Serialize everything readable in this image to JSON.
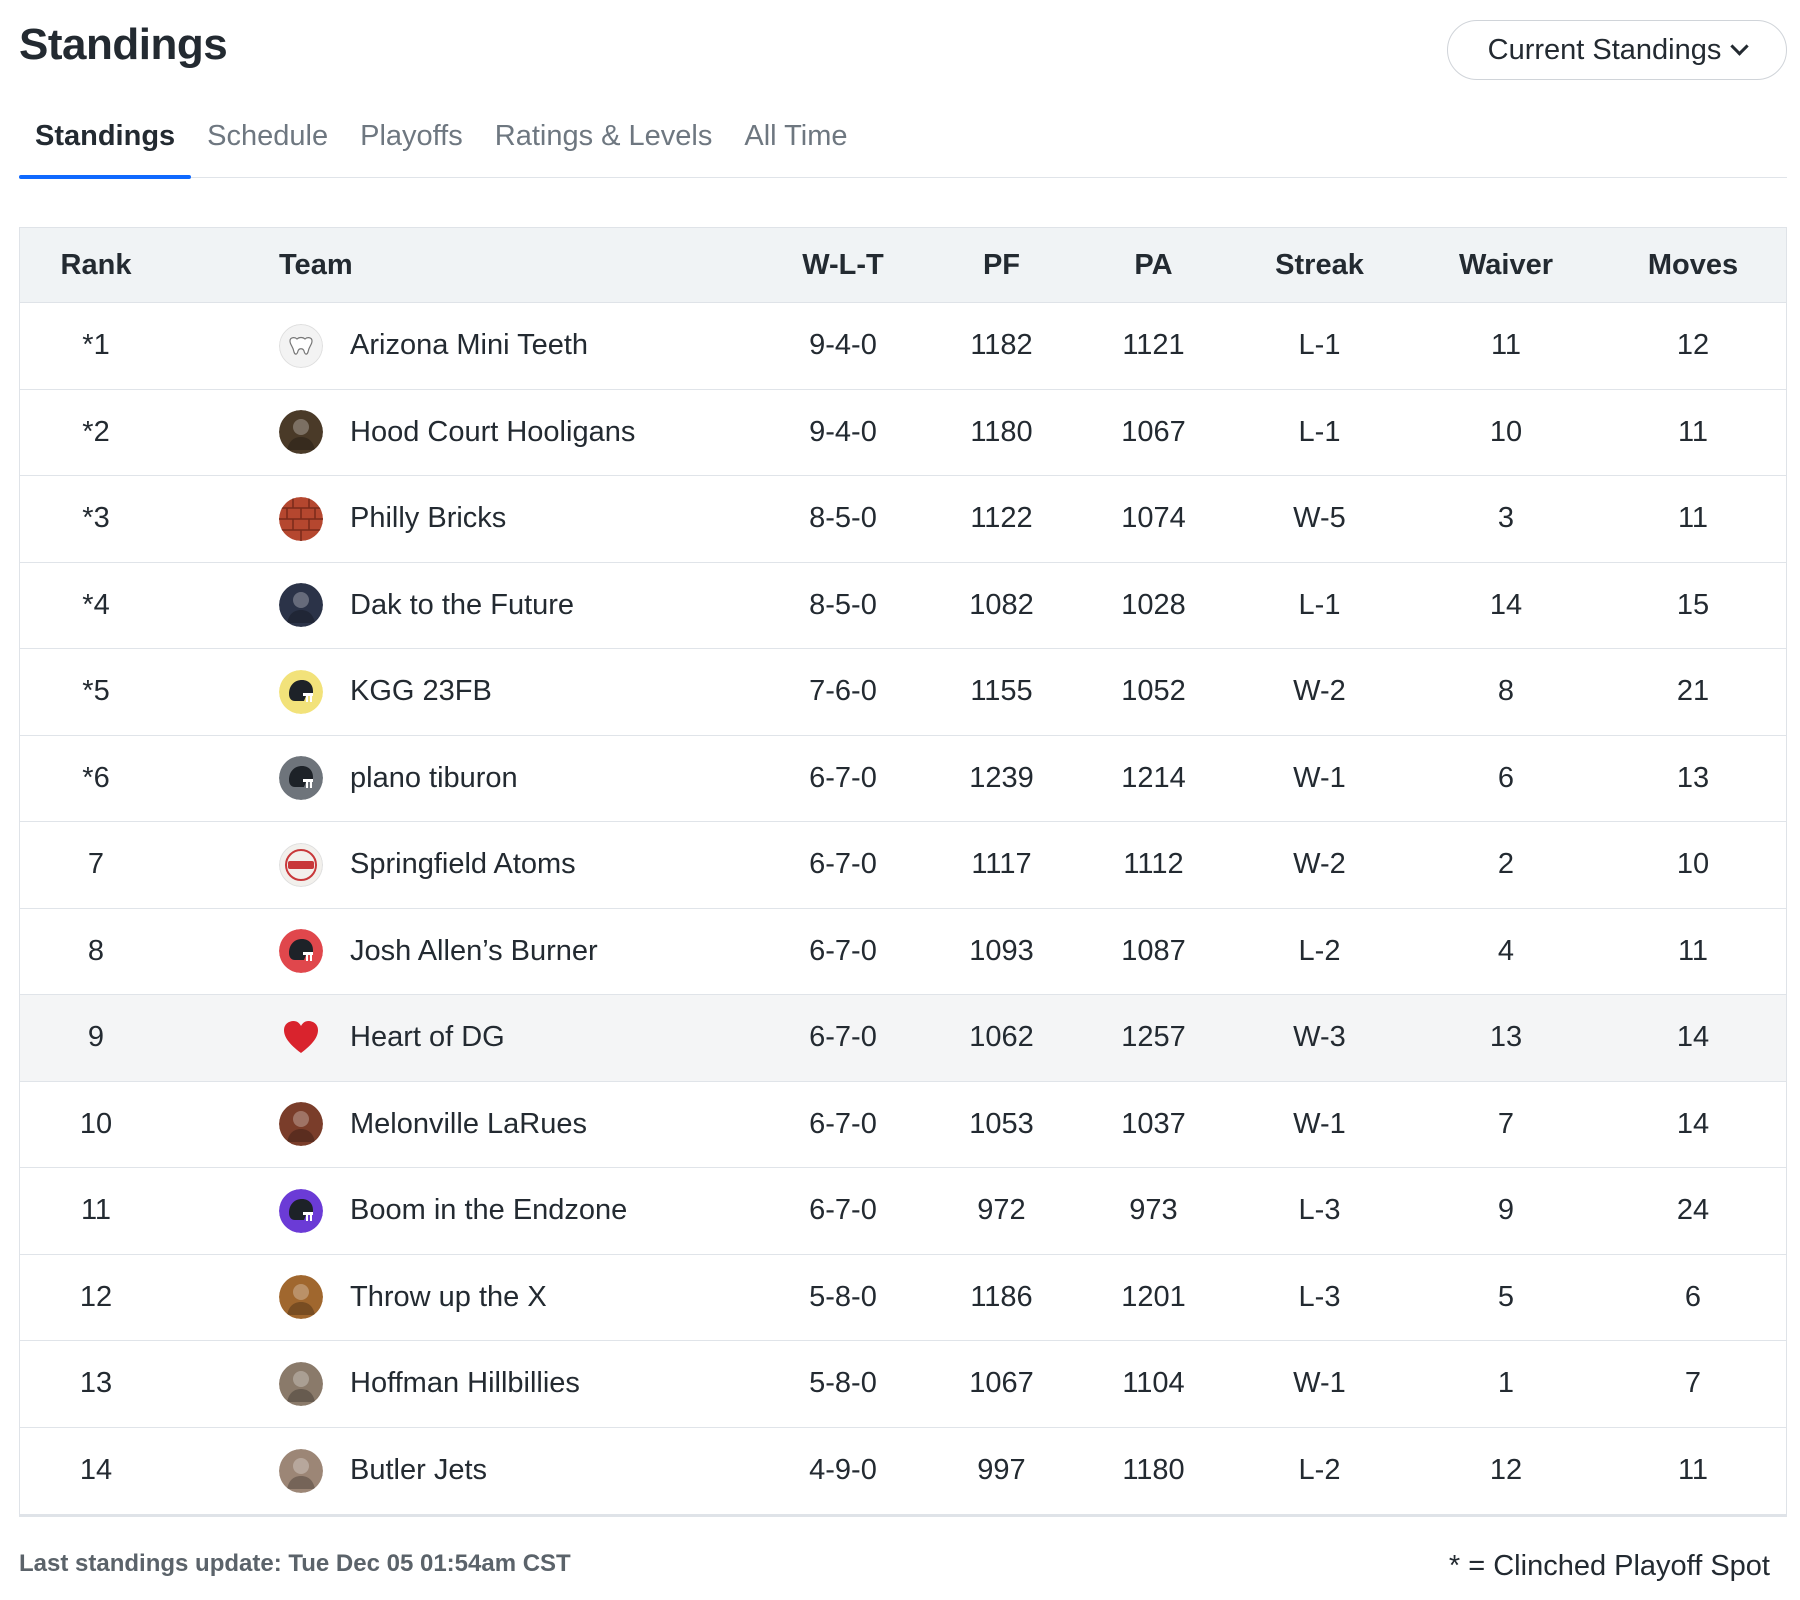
{
  "header": {
    "title": "Standings",
    "view_select": "Current Standings"
  },
  "tabs": [
    {
      "label": "Standings",
      "active": true
    },
    {
      "label": "Schedule",
      "active": false
    },
    {
      "label": "Playoffs",
      "active": false
    },
    {
      "label": "Ratings & Levels",
      "active": false
    },
    {
      "label": "All Time",
      "active": false
    }
  ],
  "table": {
    "columns": [
      "Rank",
      "Team",
      "W-L-T",
      "PF",
      "PA",
      "Streak",
      "Waiver",
      "Moves"
    ],
    "rows": [
      {
        "rank": "*1",
        "team": "Arizona Mini Teeth",
        "wlt": "9-4-0",
        "pf": "1182",
        "pa": "1121",
        "streak": "L-1",
        "waiver": "11",
        "moves": "12",
        "avatar": "teeth-icon",
        "avatar_color": "#f3f3f3"
      },
      {
        "rank": "*2",
        "team": "Hood Court Hooligans",
        "wlt": "9-4-0",
        "pf": "1180",
        "pa": "1067",
        "streak": "L-1",
        "waiver": "10",
        "moves": "11",
        "avatar": "photo-icon",
        "avatar_color": "#4a3a28"
      },
      {
        "rank": "*3",
        "team": "Philly Bricks",
        "wlt": "8-5-0",
        "pf": "1122",
        "pa": "1074",
        "streak": "W-5",
        "waiver": "3",
        "moves": "11",
        "avatar": "brick-icon",
        "avatar_color": "#b5472f"
      },
      {
        "rank": "*4",
        "team": "Dak to the Future",
        "wlt": "8-5-0",
        "pf": "1082",
        "pa": "1028",
        "streak": "L-1",
        "waiver": "14",
        "moves": "15",
        "avatar": "photo-icon",
        "avatar_color": "#2b3348"
      },
      {
        "rank": "*5",
        "team": "KGG 23FB",
        "wlt": "7-6-0",
        "pf": "1155",
        "pa": "1052",
        "streak": "W-2",
        "waiver": "8",
        "moves": "21",
        "avatar": "helmet-icon",
        "avatar_color": "#f2e27a"
      },
      {
        "rank": "*6",
        "team": "plano tiburon",
        "wlt": "6-7-0",
        "pf": "1239",
        "pa": "1214",
        "streak": "W-1",
        "waiver": "6",
        "moves": "13",
        "avatar": "helmet-icon",
        "avatar_color": "#6e747b"
      },
      {
        "rank": "7",
        "team": "Springfield Atoms",
        "wlt": "6-7-0",
        "pf": "1117",
        "pa": "1112",
        "streak": "W-2",
        "waiver": "2",
        "moves": "10",
        "avatar": "atoms-logo-icon",
        "avatar_color": "#f2f0ec"
      },
      {
        "rank": "8",
        "team": "Josh Allen’s Burner",
        "wlt": "6-7-0",
        "pf": "1093",
        "pa": "1087",
        "streak": "L-2",
        "waiver": "4",
        "moves": "11",
        "avatar": "helmet-icon",
        "avatar_color": "#e0474c"
      },
      {
        "rank": "9",
        "team": "Heart of DG",
        "wlt": "6-7-0",
        "pf": "1062",
        "pa": "1257",
        "streak": "W-3",
        "waiver": "13",
        "moves": "14",
        "avatar": "heart-icon",
        "avatar_color": "#d9232d",
        "highlight": true
      },
      {
        "rank": "10",
        "team": "Melonville LaRues",
        "wlt": "6-7-0",
        "pf": "1053",
        "pa": "1037",
        "streak": "W-1",
        "waiver": "7",
        "moves": "14",
        "avatar": "photo-icon",
        "avatar_color": "#7a3d2a"
      },
      {
        "rank": "11",
        "team": "Boom in the Endzone",
        "wlt": "6-7-0",
        "pf": "972",
        "pa": "973",
        "streak": "L-3",
        "waiver": "9",
        "moves": "24",
        "avatar": "helmet-icon",
        "avatar_color": "#6b3bd6"
      },
      {
        "rank": "12",
        "team": "Throw up the X",
        "wlt": "5-8-0",
        "pf": "1186",
        "pa": "1201",
        "streak": "L-3",
        "waiver": "5",
        "moves": "6",
        "avatar": "photo-icon",
        "avatar_color": "#a0672e"
      },
      {
        "rank": "13",
        "team": "Hoffman Hillbillies",
        "wlt": "5-8-0",
        "pf": "1067",
        "pa": "1104",
        "streak": "W-1",
        "waiver": "1",
        "moves": "7",
        "avatar": "photo-icon",
        "avatar_color": "#8a7a6a"
      },
      {
        "rank": "14",
        "team": "Butler Jets",
        "wlt": "4-9-0",
        "pf": "997",
        "pa": "1180",
        "streak": "L-2",
        "waiver": "12",
        "moves": "11",
        "avatar": "photo-icon",
        "avatar_color": "#9c8676"
      }
    ]
  },
  "footer": {
    "last_update": "Last standings update: Tue Dec 05 01:54am CST",
    "legend": "* = Clinched Playoff Spot"
  }
}
